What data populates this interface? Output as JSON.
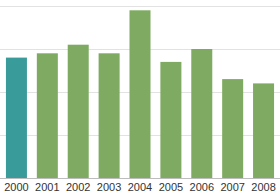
{
  "chart_data": {
    "type": "bar",
    "categories": [
      "2000",
      "2001",
      "2002",
      "2003",
      "2004",
      "2005",
      "2006",
      "2007",
      "2008"
    ],
    "values": [
      2.8,
      2.9,
      3.1,
      2.9,
      3.9,
      2.7,
      3.0,
      2.3,
      2.2
    ],
    "colors": [
      "#3a9c9a",
      "#7eab61",
      "#7eab61",
      "#7eab61",
      "#7eab61",
      "#7eab61",
      "#7eab61",
      "#7eab61",
      "#7eab61"
    ],
    "ylim": [
      0,
      4
    ],
    "yticks": [
      0,
      1,
      2,
      3,
      4
    ],
    "grid": true,
    "tick_labels": "x"
  }
}
